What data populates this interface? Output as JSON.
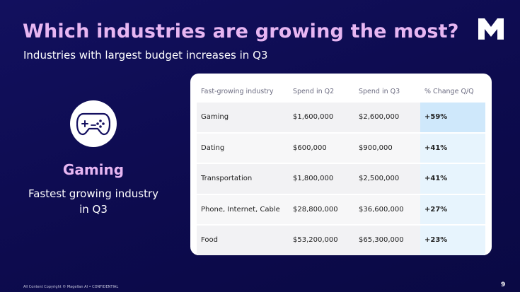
{
  "slide": {
    "title": "Which industries are growing the most?",
    "subtitle": "Industries with largest budget increases in Q3",
    "logo": "M-logo-icon",
    "highlight": {
      "icon": "gamepad-icon",
      "title": "Gaming",
      "description": "Fastest growing industry in Q3"
    },
    "table": {
      "headers": [
        "Fast-growing industry",
        "Spend in Q2",
        "Spend in Q3",
        "% Change Q/Q"
      ],
      "rows": [
        {
          "industry": "Gaming",
          "q2": "$1,600,000",
          "q3": "$2,600,000",
          "change": "+59%"
        },
        {
          "industry": "Dating",
          "q2": "$600,000",
          "q3": "$900,000",
          "change": "+41%"
        },
        {
          "industry": "Transportation",
          "q2": "$1,800,000",
          "q3": "$2,500,000",
          "change": "+41%"
        },
        {
          "industry": "Phone, Internet, Cable",
          "q2": "$28,800,000",
          "q3": "$36,600,000",
          "change": "+27%"
        },
        {
          "industry": "Food",
          "q2": "$53,200,000",
          "q3": "$65,300,000",
          "change": "+23%"
        }
      ]
    },
    "footer": "All Content Copyright © Magellan AI • CONFIDENTIAL",
    "page_number": "9",
    "colors": {
      "background": "#0f0d52",
      "title_accent": "#e7b6f2",
      "change_highlight": "#cfe8fb"
    }
  }
}
